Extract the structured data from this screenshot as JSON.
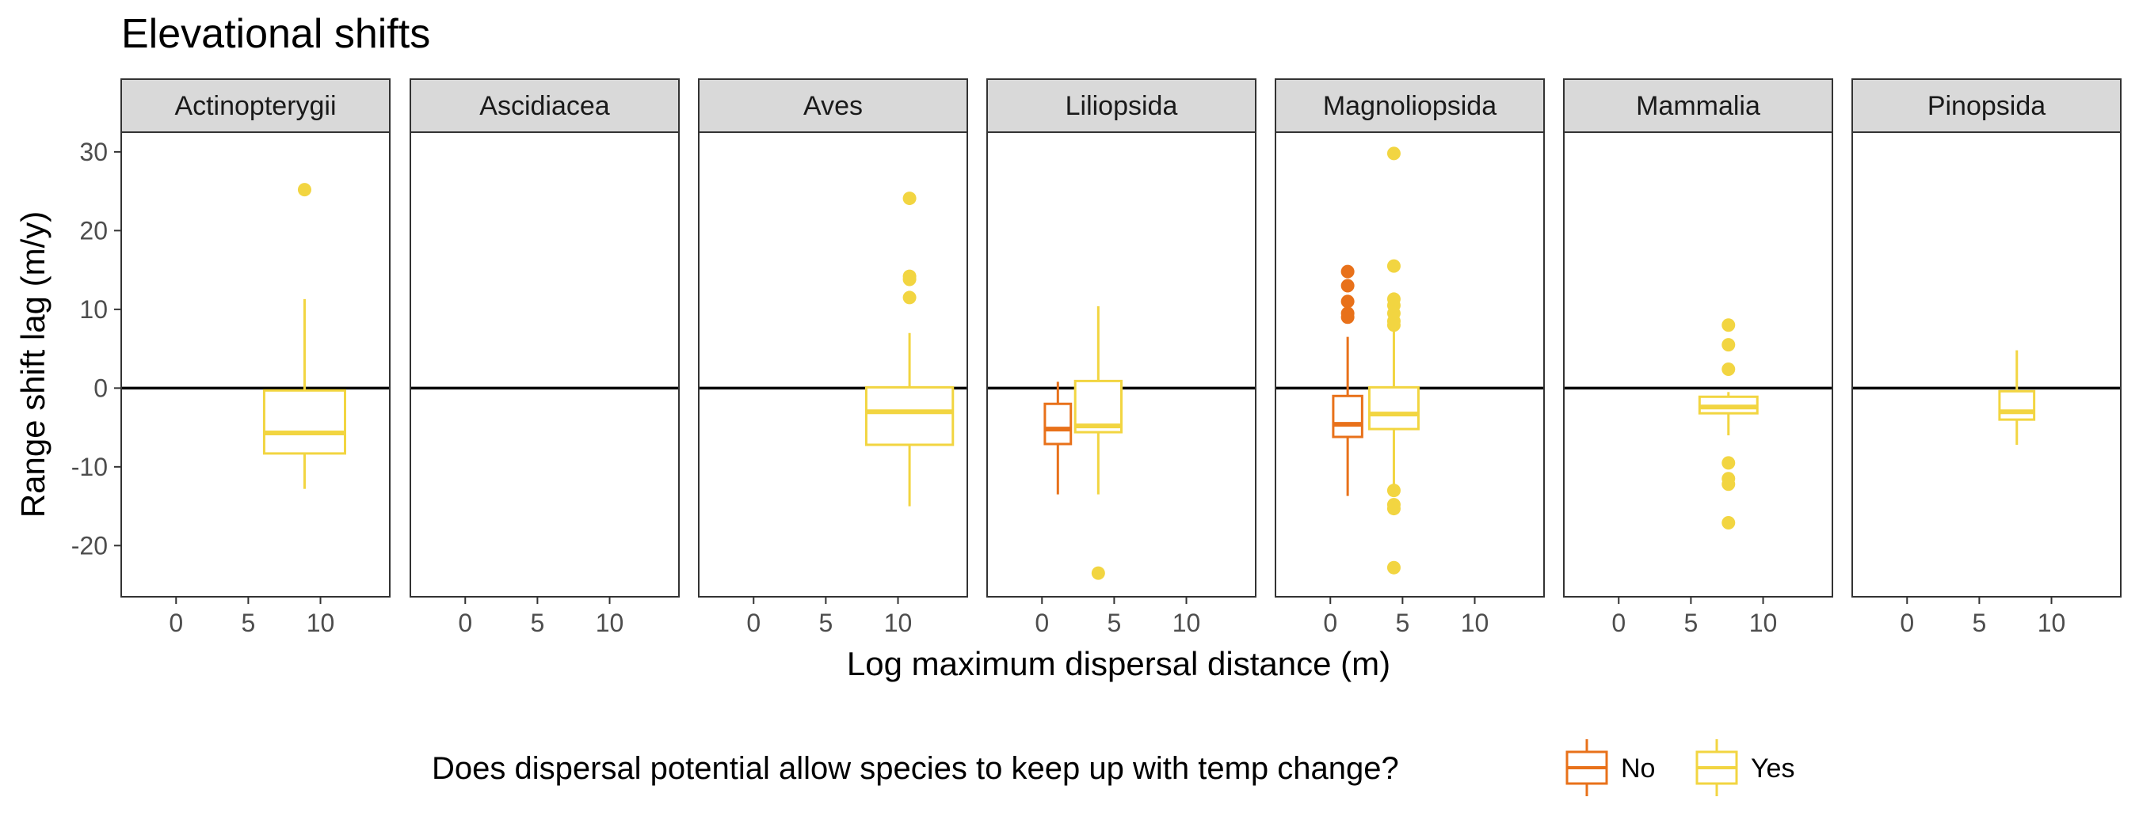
{
  "chart_data": {
    "type": "boxplot",
    "title": "Elevational shifts",
    "xlabel": "Log maximum dispersal distance (m)",
    "ylabel": "Range shift lag (m/y)",
    "xlim": [
      -3.8,
      14.8
    ],
    "ylim": [
      -26.5,
      32.5
    ],
    "x_ticks": [
      0,
      5,
      10
    ],
    "y_ticks": [
      -20,
      -10,
      0,
      10,
      20,
      30
    ],
    "reference_line_y": 0,
    "legend": {
      "title": "Does dispersal potential allow species to keep up with temp change?",
      "position": "bottom",
      "entries": [
        {
          "label": "No",
          "color": "#E8711A"
        },
        {
          "label": "Yes",
          "color": "#F2D541"
        }
      ]
    },
    "facets": [
      {
        "label": "Actinopterygii",
        "boxes": [
          {
            "group": "Yes",
            "x": 8.9,
            "half_width": 2.8,
            "q1": -8.3,
            "median": -5.7,
            "q3": -0.3,
            "whisker_low": -12.8,
            "whisker_high": 11.3,
            "outliers": [
              25.2
            ]
          }
        ]
      },
      {
        "label": "Ascidiacea",
        "boxes": []
      },
      {
        "label": "Aves",
        "boxes": [
          {
            "group": "Yes",
            "x": 10.8,
            "half_width": 3.0,
            "q1": -7.2,
            "median": -3.0,
            "q3": 0.1,
            "whisker_low": -15.0,
            "whisker_high": 7.0,
            "outliers": [
              11.5,
              13.8,
              14.2,
              24.1
            ]
          }
        ]
      },
      {
        "label": "Liliopsida",
        "boxes": [
          {
            "group": "No",
            "x": 1.1,
            "half_width": 0.9,
            "q1": -7.1,
            "median": -5.2,
            "q3": -2.0,
            "whisker_low": -13.5,
            "whisker_high": 0.8,
            "outliers": []
          },
          {
            "group": "Yes",
            "x": 3.9,
            "half_width": 1.6,
            "q1": -5.6,
            "median": -4.8,
            "q3": 0.9,
            "whisker_low": -13.5,
            "whisker_high": 10.4,
            "outliers": [
              -23.5
            ]
          }
        ]
      },
      {
        "label": "Magnoliopsida",
        "boxes": [
          {
            "group": "No",
            "x": 1.2,
            "half_width": 1.0,
            "q1": -6.2,
            "median": -4.6,
            "q3": -1.0,
            "whisker_low": -13.7,
            "whisker_high": 6.5,
            "outliers": [
              9.0,
              9.5,
              11.0,
              13.0,
              14.8
            ]
          },
          {
            "group": "Yes",
            "x": 4.4,
            "half_width": 1.7,
            "q1": -5.2,
            "median": -3.3,
            "q3": 0.1,
            "whisker_low": -12.5,
            "whisker_high": 7.5,
            "outliers": [
              8.0,
              8.5,
              9.5,
              10.5,
              11.3,
              15.5,
              29.8,
              -13.0,
              -14.8,
              -15.3,
              -22.8
            ]
          }
        ]
      },
      {
        "label": "Mammalia",
        "boxes": [
          {
            "group": "Yes",
            "x": 7.6,
            "half_width": 2.0,
            "q1": -3.2,
            "median": -2.4,
            "q3": -1.1,
            "whisker_low": -6.0,
            "whisker_high": -0.5,
            "outliers": [
              2.4,
              5.5,
              8.0,
              -9.5,
              -11.5,
              -12.2,
              -17.1
            ]
          }
        ]
      },
      {
        "label": "Pinopsida",
        "boxes": [
          {
            "group": "Yes",
            "x": 7.6,
            "half_width": 1.2,
            "q1": -4.0,
            "median": -3.0,
            "q3": -0.4,
            "whisker_low": -7.2,
            "whisker_high": 4.8,
            "outliers": []
          }
        ]
      }
    ]
  }
}
